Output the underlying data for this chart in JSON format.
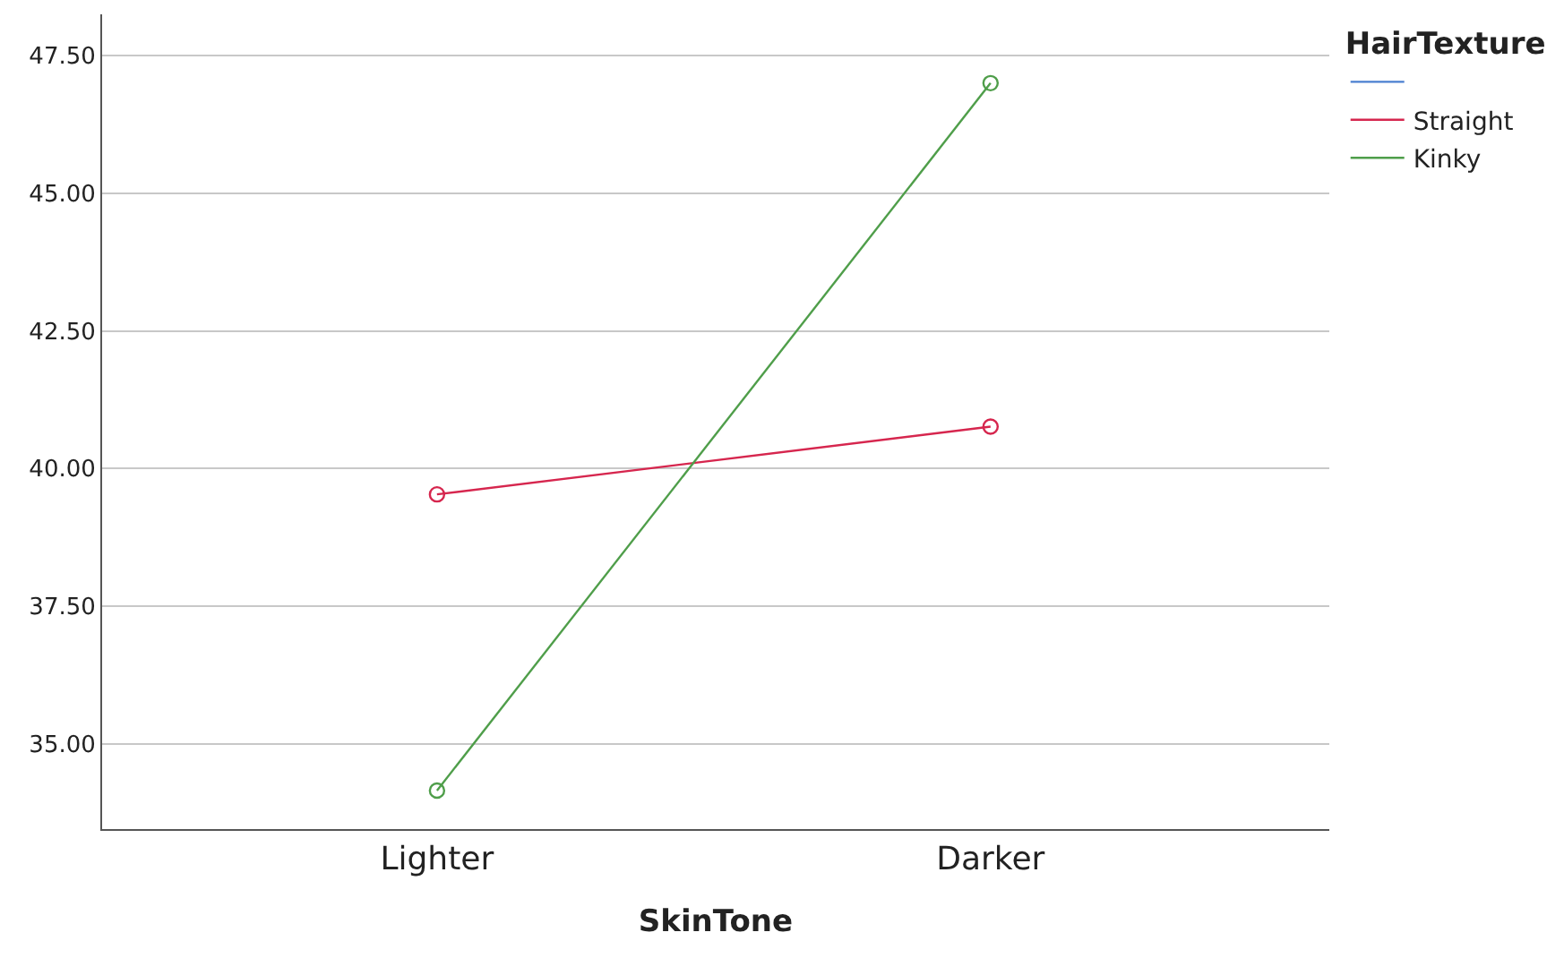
{
  "chart_data": {
    "type": "line",
    "xlabel": "SkinTone",
    "legend_title": "HairTexture",
    "categories": [
      "Lighter",
      "Darker"
    ],
    "series": [
      {
        "color": "#4a7fd0",
        "values": [
          null,
          null
        ]
      },
      {
        "name": "Straight",
        "color": "#d6264e",
        "values": [
          39.53,
          40.76
        ]
      },
      {
        "name": "Kinky",
        "color": "#4f9e4a",
        "values": [
          34.15,
          47.0
        ]
      }
    ],
    "ylim": [
      33.45,
      48.25
    ],
    "yticks": [
      {
        "value": 35,
        "label": "35.00"
      },
      {
        "value": 37.5,
        "label": "37.50"
      },
      {
        "value": 40,
        "label": "40.00"
      },
      {
        "value": 42.5,
        "label": "42.50"
      },
      {
        "value": 45,
        "label": "45.00"
      },
      {
        "value": 47.5,
        "label": "47.50"
      }
    ],
    "grid": "y",
    "legend": "top right",
    "marker": "circle",
    "line_style": "solid"
  }
}
